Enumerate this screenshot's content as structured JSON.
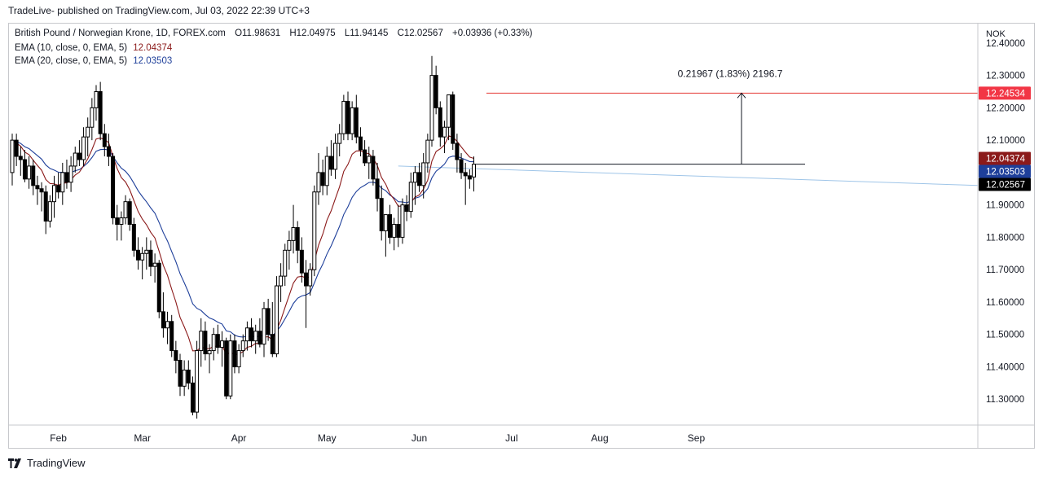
{
  "header": {
    "text": "TradeLive- published on TradingView.com, Jul 03, 2022 22:39 UTC+3"
  },
  "legend": {
    "symbol": "British Pound / Norwegian Krone, 1D, FOREX.com",
    "open_label": "O",
    "open": "11.98631",
    "high_label": "H",
    "high": "12.04975",
    "low_label": "L",
    "low": "11.94145",
    "close_label": "C",
    "close": "12.02567",
    "change": "+0.03936 (+0.33%)",
    "ema10_label": "EMA (10, close, 0, EMA, 5)",
    "ema10_value": "12.04374",
    "ema20_label": "EMA (20, close, 0, EMA, 5)",
    "ema20_value": "12.03503"
  },
  "footer": {
    "brand": "TradingView"
  },
  "colors": {
    "up_candle": "#ffffff",
    "down_candle": "#000000",
    "candle_border": "#000000",
    "ema10": "#8b1a1a",
    "ema20": "#1e3f9a",
    "trendline": "#9fc5e8",
    "target_line": "#e53935",
    "grid": "#f0f3fa"
  },
  "chart_data": {
    "type": "candlestick",
    "currency": "NOK",
    "y_ticks": [
      "12.40000",
      "12.30000",
      "12.20000",
      "12.10000",
      "12.00000",
      "11.90000",
      "11.80000",
      "11.70000",
      "11.60000",
      "11.50000",
      "11.40000",
      "11.30000"
    ],
    "ylim": [
      11.22,
      12.46
    ],
    "x_ticks": [
      "Feb",
      "Mar",
      "Apr",
      "May",
      "Jun",
      "Jul",
      "Aug",
      "Sep"
    ],
    "price_labels": [
      {
        "name": "target",
        "value": "12.24534",
        "price": 12.24534,
        "color": "#f23645"
      },
      {
        "name": "ema10",
        "value": "12.04374",
        "price": 12.04374,
        "color": "#8b1a1a"
      },
      {
        "name": "ema20",
        "value": "12.03503",
        "price": 12.03503,
        "color": "#1e3f9a"
      },
      {
        "name": "last",
        "value": "12.02567",
        "price": 12.02567,
        "color": "#000000"
      }
    ],
    "measure_annotation": {
      "text": "0.21967 (1.83%) 2196.7",
      "from_price": 12.02567,
      "to_price": 12.24534
    },
    "trendline": {
      "start_date": "2022-05-25",
      "start_price": 12.02,
      "end_price": 11.96
    },
    "candles": [
      {
        "o": 12.0,
        "h": 12.12,
        "l": 11.96,
        "c": 12.1
      },
      {
        "o": 12.1,
        "h": 12.12,
        "l": 12.02,
        "c": 12.05
      },
      {
        "o": 12.05,
        "h": 12.08,
        "l": 11.99,
        "c": 12.04
      },
      {
        "o": 12.04,
        "h": 12.07,
        "l": 11.97,
        "c": 11.98
      },
      {
        "o": 11.98,
        "h": 12.05,
        "l": 11.95,
        "c": 12.02
      },
      {
        "o": 12.02,
        "h": 12.04,
        "l": 11.93,
        "c": 11.96
      },
      {
        "o": 11.96,
        "h": 11.99,
        "l": 11.9,
        "c": 11.95
      },
      {
        "o": 11.95,
        "h": 11.97,
        "l": 11.88,
        "c": 11.94
      },
      {
        "o": 11.94,
        "h": 11.96,
        "l": 11.81,
        "c": 11.85
      },
      {
        "o": 11.85,
        "h": 11.93,
        "l": 11.83,
        "c": 11.91
      },
      {
        "o": 11.91,
        "h": 11.99,
        "l": 11.86,
        "c": 11.96
      },
      {
        "o": 11.96,
        "h": 12.0,
        "l": 11.92,
        "c": 11.94
      },
      {
        "o": 11.94,
        "h": 12.03,
        "l": 11.9,
        "c": 12.0
      },
      {
        "o": 12.0,
        "h": 12.04,
        "l": 11.95,
        "c": 11.97
      },
      {
        "o": 11.97,
        "h": 12.05,
        "l": 11.94,
        "c": 12.02
      },
      {
        "o": 12.02,
        "h": 12.08,
        "l": 12.0,
        "c": 12.06
      },
      {
        "o": 12.06,
        "h": 12.1,
        "l": 12.02,
        "c": 12.04
      },
      {
        "o": 12.04,
        "h": 12.14,
        "l": 12.02,
        "c": 12.11
      },
      {
        "o": 12.11,
        "h": 12.17,
        "l": 12.05,
        "c": 12.14
      },
      {
        "o": 12.14,
        "h": 12.23,
        "l": 12.1,
        "c": 12.2
      },
      {
        "o": 12.2,
        "h": 12.27,
        "l": 12.16,
        "c": 12.25
      },
      {
        "o": 12.25,
        "h": 12.28,
        "l": 12.1,
        "c": 12.12
      },
      {
        "o": 12.12,
        "h": 12.15,
        "l": 12.05,
        "c": 12.08
      },
      {
        "o": 12.08,
        "h": 12.12,
        "l": 12.02,
        "c": 12.05
      },
      {
        "o": 12.05,
        "h": 12.06,
        "l": 11.84,
        "c": 11.86
      },
      {
        "o": 11.86,
        "h": 11.9,
        "l": 11.79,
        "c": 11.84
      },
      {
        "o": 11.84,
        "h": 11.88,
        "l": 11.79,
        "c": 11.86
      },
      {
        "o": 11.86,
        "h": 11.93,
        "l": 11.84,
        "c": 11.91
      },
      {
        "o": 11.91,
        "h": 11.92,
        "l": 11.82,
        "c": 11.84
      },
      {
        "o": 11.84,
        "h": 11.86,
        "l": 11.74,
        "c": 11.76
      },
      {
        "o": 11.76,
        "h": 11.8,
        "l": 11.7,
        "c": 11.73
      },
      {
        "o": 11.73,
        "h": 11.77,
        "l": 11.67,
        "c": 11.75
      },
      {
        "o": 11.75,
        "h": 11.8,
        "l": 11.7,
        "c": 11.76
      },
      {
        "o": 11.76,
        "h": 11.79,
        "l": 11.68,
        "c": 11.71
      },
      {
        "o": 11.71,
        "h": 11.75,
        "l": 11.66,
        "c": 11.72
      },
      {
        "o": 11.72,
        "h": 11.73,
        "l": 11.55,
        "c": 11.57
      },
      {
        "o": 11.57,
        "h": 11.63,
        "l": 11.49,
        "c": 11.52
      },
      {
        "o": 11.52,
        "h": 11.57,
        "l": 11.47,
        "c": 11.54
      },
      {
        "o": 11.54,
        "h": 11.56,
        "l": 11.43,
        "c": 11.45
      },
      {
        "o": 11.45,
        "h": 11.48,
        "l": 11.38,
        "c": 11.42
      },
      {
        "o": 11.42,
        "h": 11.44,
        "l": 11.31,
        "c": 11.34
      },
      {
        "o": 11.34,
        "h": 11.42,
        "l": 11.31,
        "c": 11.39
      },
      {
        "o": 11.39,
        "h": 11.42,
        "l": 11.33,
        "c": 11.35
      },
      {
        "o": 11.35,
        "h": 11.37,
        "l": 11.25,
        "c": 11.26
      },
      {
        "o": 11.26,
        "h": 11.48,
        "l": 11.24,
        "c": 11.45
      },
      {
        "o": 11.45,
        "h": 11.55,
        "l": 11.4,
        "c": 11.51
      },
      {
        "o": 11.51,
        "h": 11.54,
        "l": 11.42,
        "c": 11.44
      },
      {
        "o": 11.44,
        "h": 11.47,
        "l": 11.38,
        "c": 11.45
      },
      {
        "o": 11.45,
        "h": 11.52,
        "l": 11.42,
        "c": 11.5
      },
      {
        "o": 11.5,
        "h": 11.53,
        "l": 11.44,
        "c": 11.46
      },
      {
        "o": 11.46,
        "h": 11.51,
        "l": 11.4,
        "c": 11.48
      },
      {
        "o": 11.48,
        "h": 11.49,
        "l": 11.3,
        "c": 11.31
      },
      {
        "o": 11.31,
        "h": 11.5,
        "l": 11.3,
        "c": 11.48
      },
      {
        "o": 11.48,
        "h": 11.5,
        "l": 11.38,
        "c": 11.4
      },
      {
        "o": 11.4,
        "h": 11.47,
        "l": 11.38,
        "c": 11.45
      },
      {
        "o": 11.45,
        "h": 11.5,
        "l": 11.43,
        "c": 11.48
      },
      {
        "o": 11.48,
        "h": 11.54,
        "l": 11.45,
        "c": 11.52
      },
      {
        "o": 11.52,
        "h": 11.55,
        "l": 11.46,
        "c": 11.48
      },
      {
        "o": 11.48,
        "h": 11.53,
        "l": 11.44,
        "c": 11.51
      },
      {
        "o": 11.51,
        "h": 11.55,
        "l": 11.46,
        "c": 11.47
      },
      {
        "o": 11.47,
        "h": 11.6,
        "l": 11.43,
        "c": 11.58
      },
      {
        "o": 11.58,
        "h": 11.61,
        "l": 11.48,
        "c": 11.5
      },
      {
        "o": 11.5,
        "h": 11.6,
        "l": 11.43,
        "c": 11.44
      },
      {
        "o": 11.44,
        "h": 11.68,
        "l": 11.43,
        "c": 11.65
      },
      {
        "o": 11.65,
        "h": 11.72,
        "l": 11.6,
        "c": 11.68
      },
      {
        "o": 11.68,
        "h": 11.78,
        "l": 11.65,
        "c": 11.76
      },
      {
        "o": 11.76,
        "h": 11.82,
        "l": 11.7,
        "c": 11.79
      },
      {
        "o": 11.79,
        "h": 11.9,
        "l": 11.75,
        "c": 11.83
      },
      {
        "o": 11.83,
        "h": 11.85,
        "l": 11.72,
        "c": 11.76
      },
      {
        "o": 11.76,
        "h": 11.8,
        "l": 11.66,
        "c": 11.69
      },
      {
        "o": 11.69,
        "h": 11.73,
        "l": 11.52,
        "c": 11.65
      },
      {
        "o": 11.65,
        "h": 11.72,
        "l": 11.62,
        "c": 11.7
      },
      {
        "o": 11.7,
        "h": 11.96,
        "l": 11.68,
        "c": 11.94
      },
      {
        "o": 11.94,
        "h": 12.06,
        "l": 11.9,
        "c": 12.0
      },
      {
        "o": 12.0,
        "h": 12.04,
        "l": 11.93,
        "c": 11.96
      },
      {
        "o": 11.96,
        "h": 12.08,
        "l": 11.93,
        "c": 12.05
      },
      {
        "o": 12.05,
        "h": 12.1,
        "l": 11.99,
        "c": 12.01
      },
      {
        "o": 12.01,
        "h": 12.12,
        "l": 11.98,
        "c": 12.09
      },
      {
        "o": 12.09,
        "h": 12.15,
        "l": 12.05,
        "c": 12.12
      },
      {
        "o": 12.12,
        "h": 12.24,
        "l": 12.1,
        "c": 12.22
      },
      {
        "o": 12.22,
        "h": 12.25,
        "l": 12.1,
        "c": 12.12
      },
      {
        "o": 12.12,
        "h": 12.22,
        "l": 12.1,
        "c": 12.2
      },
      {
        "o": 12.2,
        "h": 12.24,
        "l": 12.09,
        "c": 12.11
      },
      {
        "o": 12.11,
        "h": 12.14,
        "l": 12.05,
        "c": 12.07
      },
      {
        "o": 12.07,
        "h": 12.1,
        "l": 12.02,
        "c": 12.03
      },
      {
        "o": 12.03,
        "h": 12.08,
        "l": 11.98,
        "c": 12.05
      },
      {
        "o": 12.05,
        "h": 12.07,
        "l": 11.96,
        "c": 11.98
      },
      {
        "o": 11.98,
        "h": 12.03,
        "l": 11.88,
        "c": 11.92
      },
      {
        "o": 11.92,
        "h": 11.96,
        "l": 11.79,
        "c": 11.82
      },
      {
        "o": 11.82,
        "h": 11.87,
        "l": 11.74,
        "c": 11.87
      },
      {
        "o": 11.87,
        "h": 11.9,
        "l": 11.78,
        "c": 11.8
      },
      {
        "o": 11.8,
        "h": 11.86,
        "l": 11.76,
        "c": 11.84
      },
      {
        "o": 11.84,
        "h": 11.9,
        "l": 11.77,
        "c": 11.8
      },
      {
        "o": 11.8,
        "h": 11.92,
        "l": 11.78,
        "c": 11.9
      },
      {
        "o": 11.9,
        "h": 11.93,
        "l": 11.85,
        "c": 11.88
      },
      {
        "o": 11.88,
        "h": 12.0,
        "l": 11.86,
        "c": 11.97
      },
      {
        "o": 11.97,
        "h": 12.02,
        "l": 11.9,
        "c": 12.0
      },
      {
        "o": 12.0,
        "h": 12.03,
        "l": 11.94,
        "c": 11.96
      },
      {
        "o": 11.96,
        "h": 12.06,
        "l": 11.92,
        "c": 12.03
      },
      {
        "o": 12.03,
        "h": 12.12,
        "l": 12.0,
        "c": 12.1
      },
      {
        "o": 12.1,
        "h": 12.36,
        "l": 12.08,
        "c": 12.3
      },
      {
        "o": 12.3,
        "h": 12.33,
        "l": 12.18,
        "c": 12.2
      },
      {
        "o": 12.2,
        "h": 12.22,
        "l": 12.08,
        "c": 12.11
      },
      {
        "o": 12.11,
        "h": 12.16,
        "l": 12.06,
        "c": 12.14
      },
      {
        "o": 12.14,
        "h": 12.24,
        "l": 12.1,
        "c": 12.24
      },
      {
        "o": 12.24,
        "h": 12.25,
        "l": 12.07,
        "c": 12.09
      },
      {
        "o": 12.09,
        "h": 12.12,
        "l": 12.0,
        "c": 12.04
      },
      {
        "o": 12.04,
        "h": 12.06,
        "l": 11.98,
        "c": 12.0
      },
      {
        "o": 12.0,
        "h": 12.03,
        "l": 11.9,
        "c": 11.99
      },
      {
        "o": 11.99,
        "h": 12.01,
        "l": 11.95,
        "c": 11.98
      },
      {
        "o": 11.98631,
        "h": 12.04975,
        "l": 11.94145,
        "c": 12.02567
      }
    ]
  }
}
